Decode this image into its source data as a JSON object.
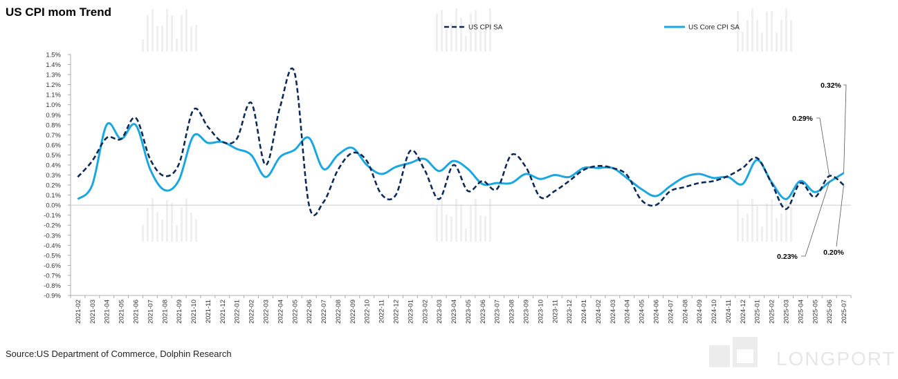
{
  "title": "US CPI mom Trend",
  "source": "Source:US Department of Commerce, Dolphin Research",
  "watermark_text": "LONGPORT",
  "chart_data": {
    "type": "line",
    "title": "US CPI mom Trend",
    "xlabel": "",
    "ylabel": "",
    "ylim": [
      -0.9,
      1.5
    ],
    "y_ticks": [
      "1.5%",
      "1.4%",
      "1.3%",
      "1.2%",
      "1.1%",
      "1.0%",
      "0.9%",
      "0.8%",
      "0.7%",
      "0.6%",
      "0.5%",
      "0.4%",
      "0.3%",
      "0.2%",
      "0.1%",
      "0.0%",
      "-0.1%",
      "-0.2%",
      "-0.3%",
      "-0.4%",
      "-0.5%",
      "-0.6%",
      "-0.7%",
      "-0.8%",
      "-0.9%"
    ],
    "grid": false,
    "legend_position": "top",
    "categories": [
      "2021-02",
      "2021-03",
      "2021-04",
      "2021-05",
      "2021-06",
      "2021-07",
      "2021-08",
      "2021-09",
      "2021-10",
      "2021-11",
      "2021-12",
      "2022-01",
      "2022-02",
      "2022-03",
      "2022-04",
      "2022-05",
      "2022-06",
      "2022-07",
      "2022-08",
      "2022-09",
      "2022-10",
      "2022-11",
      "2022-12",
      "2023-01",
      "2023-02",
      "2023-03",
      "2023-04",
      "2023-05",
      "2023-06",
      "2023-07",
      "2023-08",
      "2023-09",
      "2023-10",
      "2023-11",
      "2023-12",
      "2024-01",
      "2024-02",
      "2024-03",
      "2024-04",
      "2024-05",
      "2024-06",
      "2024-07",
      "2024-08",
      "2024-09",
      "2024-10",
      "2024-11",
      "2024-12",
      "2025-01",
      "2025-02",
      "2025-03",
      "2025-04",
      "2025-05",
      "2025-06",
      "2025-07"
    ],
    "series": [
      {
        "name": "US CPI SA",
        "color": "#0d2a56",
        "style": "dashed",
        "values": [
          0.28,
          0.44,
          0.67,
          0.66,
          0.87,
          0.46,
          0.29,
          0.41,
          0.95,
          0.78,
          0.63,
          0.66,
          1.02,
          0.4,
          0.98,
          1.32,
          0.0,
          0.03,
          0.35,
          0.52,
          0.44,
          0.11,
          0.1,
          0.54,
          0.35,
          0.06,
          0.4,
          0.14,
          0.24,
          0.16,
          0.5,
          0.38,
          0.08,
          0.14,
          0.24,
          0.35,
          0.39,
          0.37,
          0.3,
          0.05,
          0.0,
          0.14,
          0.18,
          0.22,
          0.24,
          0.29,
          0.37,
          0.47,
          0.22,
          -0.04,
          0.22,
          0.08,
          0.29,
          0.2
        ]
      },
      {
        "name": "US Core CPI SA",
        "color": "#1aa6e0",
        "style": "solid",
        "values": [
          0.06,
          0.2,
          0.8,
          0.66,
          0.8,
          0.36,
          0.15,
          0.25,
          0.69,
          0.62,
          0.63,
          0.56,
          0.5,
          0.28,
          0.48,
          0.55,
          0.67,
          0.36,
          0.5,
          0.57,
          0.4,
          0.31,
          0.38,
          0.42,
          0.46,
          0.34,
          0.44,
          0.36,
          0.21,
          0.22,
          0.22,
          0.31,
          0.26,
          0.3,
          0.28,
          0.37,
          0.37,
          0.37,
          0.27,
          0.16,
          0.09,
          0.19,
          0.28,
          0.31,
          0.27,
          0.28,
          0.21,
          0.45,
          0.23,
          0.06,
          0.24,
          0.13,
          0.23,
          0.32
        ]
      }
    ],
    "annotations": [
      {
        "label": "0.32%",
        "series": "US Core CPI SA",
        "category": "2025-07",
        "value": 0.32
      },
      {
        "label": "0.29%",
        "series": "US CPI SA",
        "category": "2025-06",
        "value": 0.29
      },
      {
        "label": "0.23%",
        "series": "US Core CPI SA",
        "category": "2025-06",
        "value": 0.23
      },
      {
        "label": "0.20%",
        "series": "US CPI SA",
        "category": "2025-07",
        "value": 0.2
      }
    ]
  }
}
